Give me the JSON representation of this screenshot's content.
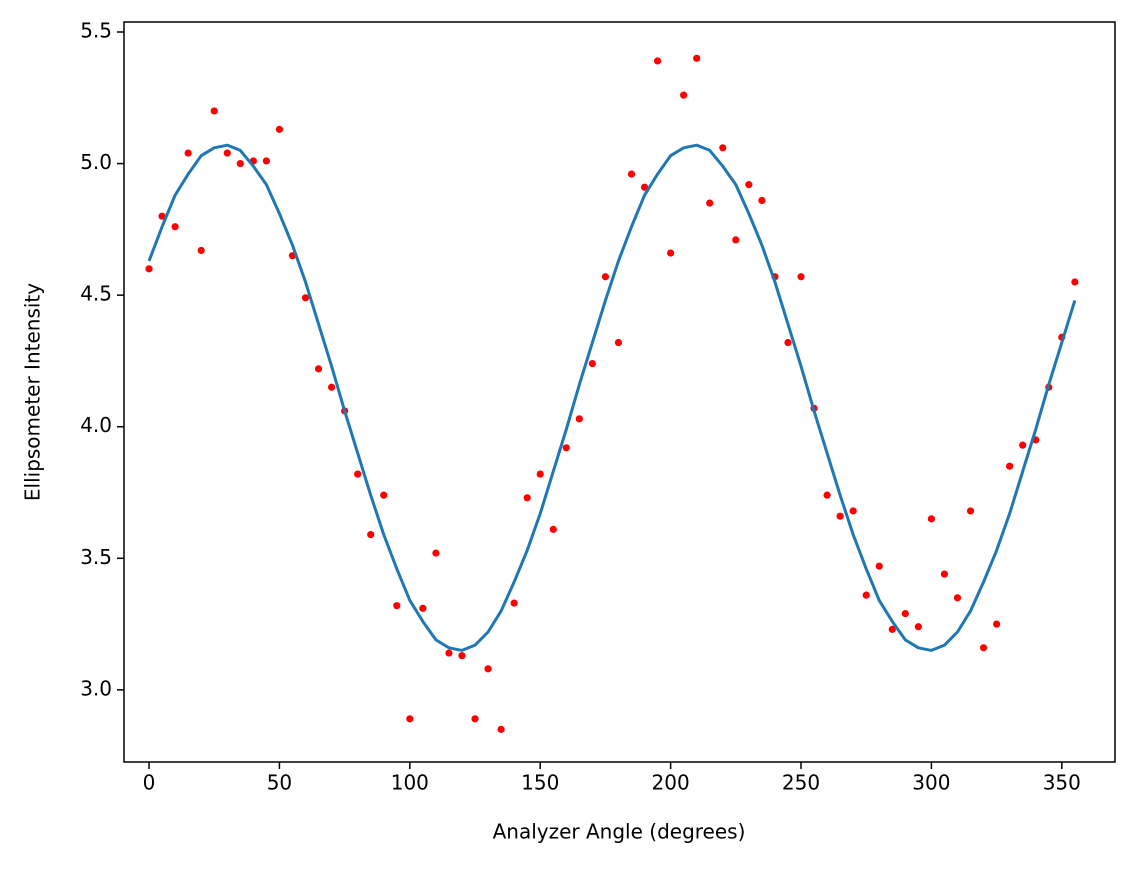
{
  "chart_data": {
    "type": "scatter",
    "x_label": "Analyzer Angle (degrees)",
    "y_label": "Ellipsometer Intensity",
    "x": [
      0,
      5,
      10,
      15,
      20,
      25,
      30,
      35,
      40,
      45,
      50,
      55,
      60,
      65,
      70,
      75,
      80,
      85,
      90,
      95,
      100,
      105,
      110,
      115,
      120,
      125,
      130,
      135,
      140,
      145,
      150,
      155,
      160,
      165,
      170,
      175,
      180,
      185,
      190,
      195,
      200,
      205,
      210,
      215,
      220,
      225,
      230,
      235,
      240,
      245,
      250,
      255,
      260,
      265,
      270,
      275,
      280,
      285,
      290,
      295,
      300,
      305,
      310,
      315,
      320,
      325,
      330,
      335,
      340,
      345,
      350,
      355
    ],
    "series": [
      {
        "type": "scatter",
        "color": "#ff0000",
        "values": [
          4.6,
          4.8,
          4.76,
          5.04,
          4.67,
          5.2,
          5.04,
          5.0,
          5.01,
          5.01,
          5.13,
          4.65,
          4.49,
          4.22,
          4.15,
          4.06,
          3.82,
          3.59,
          3.74,
          3.32,
          2.89,
          3.31,
          3.52,
          3.14,
          3.13,
          2.89,
          3.08,
          2.85,
          3.33,
          3.73,
          3.82,
          3.61,
          3.92,
          4.03,
          4.24,
          4.57,
          4.32,
          4.96,
          4.91,
          5.39,
          4.66,
          5.26,
          5.4,
          4.85,
          5.06,
          4.71,
          4.92,
          4.86,
          4.57,
          4.32,
          4.57,
          4.07,
          3.74,
          3.66,
          3.68,
          3.36,
          3.47,
          3.23,
          3.29,
          3.24,
          3.65,
          3.44,
          3.35,
          3.68,
          3.16,
          3.25,
          3.85,
          3.93,
          3.95,
          4.15,
          4.34,
          4.55
        ]
      },
      {
        "type": "line",
        "color": "#1f77b4",
        "values": [
          4.63,
          4.76,
          4.88,
          4.96,
          5.03,
          5.06,
          5.07,
          5.05,
          4.99,
          4.92,
          4.81,
          4.69,
          4.55,
          4.39,
          4.23,
          4.06,
          3.9,
          3.74,
          3.59,
          3.46,
          3.34,
          3.26,
          3.19,
          3.16,
          3.15,
          3.17,
          3.22,
          3.3,
          3.41,
          3.53,
          3.67,
          3.83,
          3.99,
          4.16,
          4.32,
          4.48,
          4.63,
          4.76,
          4.88,
          4.96,
          5.03,
          5.06,
          5.07,
          5.05,
          4.99,
          4.92,
          4.81,
          4.69,
          4.55,
          4.39,
          4.23,
          4.06,
          3.9,
          3.74,
          3.59,
          3.46,
          3.34,
          3.26,
          3.19,
          3.16,
          3.15,
          3.17,
          3.22,
          3.3,
          3.41,
          3.53,
          3.67,
          3.83,
          3.99,
          4.16,
          4.32,
          4.48
        ]
      }
    ],
    "xlim": [
      -9.6,
      370.4
    ],
    "ylim": [
      2.726,
      5.538
    ],
    "xticks": [
      0,
      50,
      100,
      150,
      200,
      250,
      300,
      350
    ],
    "yticks": [
      {
        "value": 3,
        "label": "3.0"
      },
      3.5,
      {
        "value": 4,
        "label": "4.0"
      },
      4.5,
      {
        "value": 5,
        "label": "5.0"
      },
      5.5
    ],
    "grid": false
  }
}
